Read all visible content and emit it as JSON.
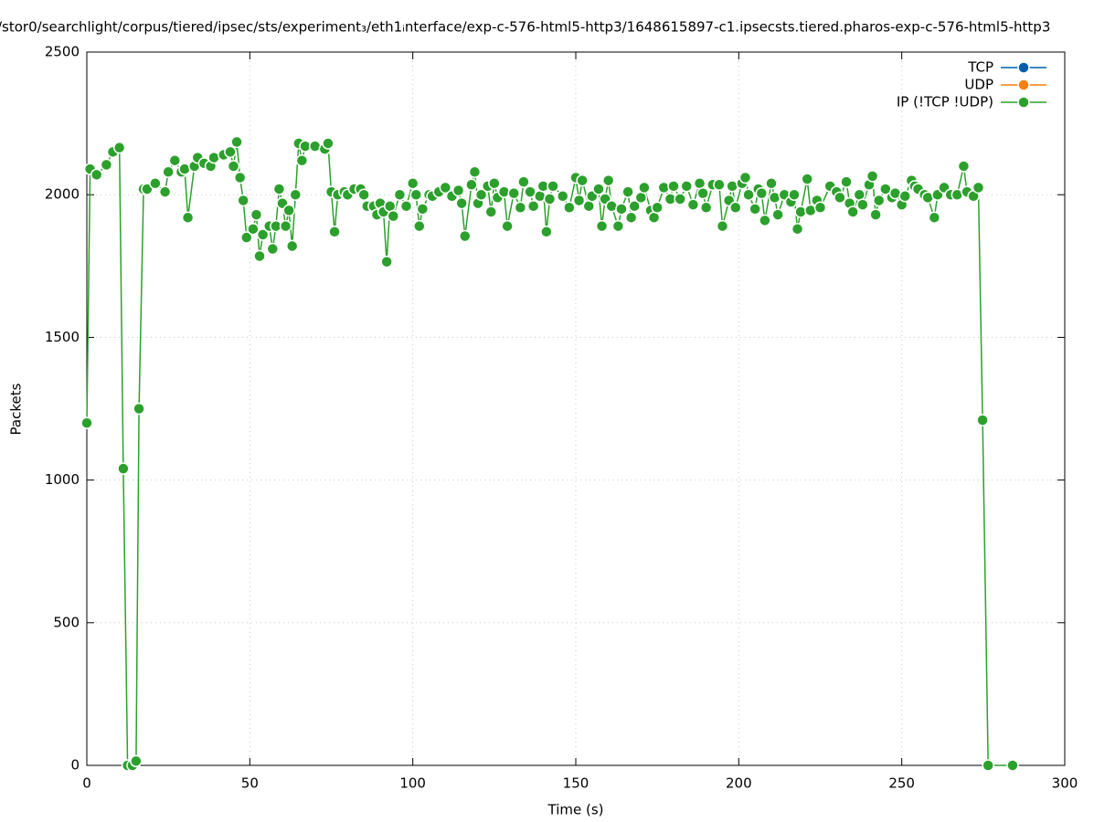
{
  "chart_data": {
    "type": "line",
    "title": "/stor0/searchlight/corpus/tiered/ipsec/sts/experiment₃/eth1ᵢnterface/exp-c-576-html5-http3/1648615897-c1.ipsecsts.tiered.pharos-exp-c-576-html5-http3",
    "x_label": "Time (s)",
    "y_label": "Packets",
    "xlim": [
      0,
      300
    ],
    "xticks": [
      0,
      50,
      100,
      150,
      200,
      250,
      300
    ],
    "ylim": [
      0,
      2500
    ],
    "yticks": [
      0,
      500,
      1000,
      1500,
      2000,
      2500
    ],
    "grid": true,
    "legend": "top-right",
    "series": [
      {
        "name": "TCP",
        "color": "#0060ad",
        "x": [],
        "values": []
      },
      {
        "name": "UDP",
        "color": "#ff7f0e",
        "x": [],
        "values": []
      },
      {
        "name": "IP (!TCP  !UDP)",
        "color": "#2ca02c",
        "x": [
          0,
          1,
          3,
          6,
          8,
          10,
          11.2,
          12.5,
          14,
          15.1,
          16,
          17.4,
          18.5,
          21,
          24,
          25,
          27,
          29,
          30,
          31,
          33,
          34,
          36,
          38,
          39,
          42,
          44,
          45,
          46,
          47,
          48,
          49,
          51,
          52,
          53,
          54,
          56,
          57,
          58,
          59,
          60,
          61,
          62,
          63,
          64,
          65,
          66,
          67,
          70,
          73,
          74,
          75,
          76,
          77,
          79,
          80,
          82,
          84,
          85,
          86,
          88,
          89,
          90,
          91,
          92,
          93,
          94,
          96,
          98,
          100,
          101,
          102,
          103,
          105,
          106,
          108,
          110,
          112,
          114,
          115,
          116,
          118,
          119,
          120,
          121,
          123,
          124,
          125,
          126,
          128,
          129,
          131,
          133,
          134,
          136,
          137,
          139,
          140,
          141,
          142,
          143,
          146,
          148,
          150,
          151,
          152,
          154,
          155,
          157,
          158,
          159,
          160,
          161,
          163,
          164,
          166,
          167,
          168,
          170,
          171,
          173,
          174,
          175,
          177,
          179,
          180,
          182,
          184,
          186,
          188,
          189,
          190,
          192,
          194,
          195,
          197,
          198,
          199,
          201,
          202,
          203,
          205,
          206,
          207,
          208,
          210,
          211,
          212,
          214,
          216,
          217,
          218,
          219,
          221,
          222,
          224,
          225,
          228,
          230,
          231,
          233,
          234,
          235,
          237,
          238,
          240,
          241,
          242,
          243,
          245,
          247,
          248,
          250,
          251,
          253,
          254,
          255,
          257,
          258,
          260,
          261,
          263,
          265,
          267,
          269,
          270,
          272,
          273.5,
          274.8,
          276.5,
          284
        ],
        "values": [
          1200,
          2090,
          2070,
          2105,
          2150,
          2165,
          1040,
          0,
          0,
          15,
          1250,
          2020,
          2020,
          2040,
          2010,
          2080,
          2120,
          2080,
          2090,
          1920,
          2100,
          2130,
          2110,
          2100,
          2130,
          2140,
          2150,
          2100,
          2185,
          2060,
          1980,
          1850,
          1880,
          1930,
          1785,
          1860,
          1890,
          1810,
          1890,
          2020,
          1970,
          1890,
          1945,
          1820,
          2000,
          2180,
          2120,
          2170,
          2170,
          2160,
          2180,
          2010,
          1870,
          2000,
          2010,
          2000,
          2020,
          2020,
          2000,
          1960,
          1960,
          1930,
          1970,
          1940,
          1765,
          1960,
          1925,
          2000,
          1960,
          2040,
          2000,
          1890,
          1950,
          2000,
          1995,
          2010,
          2025,
          1995,
          2015,
          1970,
          1855,
          2035,
          2080,
          1970,
          2000,
          2030,
          1940,
          2040,
          1990,
          2010,
          1890,
          2005,
          1955,
          2045,
          2010,
          1960,
          1995,
          2030,
          1870,
          1985,
          2030,
          1995,
          1955,
          2060,
          1980,
          2050,
          1960,
          1995,
          2020,
          1890,
          1985,
          2050,
          1960,
          1890,
          1950,
          2010,
          1920,
          1960,
          1990,
          2025,
          1945,
          1920,
          1955,
          2025,
          1985,
          2030,
          1985,
          2030,
          1965,
          2040,
          2005,
          1955,
          2035,
          2035,
          1890,
          1980,
          2030,
          1955,
          2040,
          2060,
          2000,
          1950,
          2020,
          2005,
          1910,
          2040,
          1990,
          1930,
          2000,
          1975,
          2000,
          1880,
          1940,
          2055,
          1945,
          1980,
          1955,
          2030,
          2010,
          1990,
          2045,
          1970,
          1940,
          2000,
          1965,
          2035,
          2065,
          1930,
          1980,
          2020,
          1990,
          2005,
          1965,
          1995,
          2050,
          2030,
          2020,
          2000,
          1990,
          1920,
          2000,
          2025,
          2000,
          2000,
          2100,
          2010,
          1995,
          2025,
          1210,
          0,
          0
        ]
      }
    ]
  }
}
